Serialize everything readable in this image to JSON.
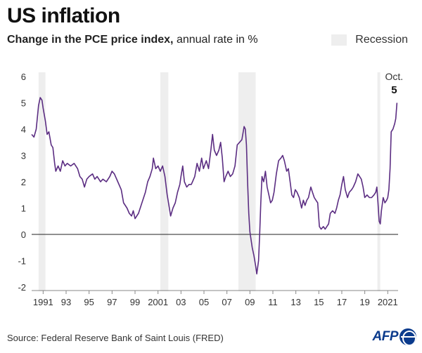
{
  "header": {
    "title": "US inflation",
    "subtitle_bold": "Change in the PCE price index,",
    "subtitle_rest": " annual rate in %"
  },
  "legend": {
    "recession_label": "Recession",
    "recession_color": "#eeeeee"
  },
  "footer": {
    "source": "Source: Federal Reserve Bank of Saint Louis (FRED)",
    "logo": "AFP"
  },
  "colors": {
    "line": "#5b2d82",
    "zero_line": "#222222",
    "axis": "#888888",
    "text": "#333333"
  },
  "chart_data": {
    "type": "line",
    "title": "US inflation",
    "subtitle": "Change in the PCE price index, annual rate in %",
    "xlabel": "",
    "ylabel": "",
    "xlim": [
      1990,
      2021.9
    ],
    "ylim": [
      -2,
      6
    ],
    "grid": false,
    "y_ticks": [
      -2,
      -1,
      0,
      1,
      2,
      3,
      4,
      5,
      6
    ],
    "y_tick_labels": [
      "-2",
      "-1",
      "0",
      "1",
      "2",
      "3",
      "4",
      "5",
      "6"
    ],
    "x_ticks": [
      1991,
      1993,
      1995,
      1997,
      1999,
      2001,
      2003,
      2005,
      2007,
      2009,
      2011,
      2013,
      2015,
      2017,
      2019,
      2021
    ],
    "x_tick_labels": [
      "1991",
      "93",
      "95",
      "97",
      "99",
      "2001",
      "03",
      "05",
      "07",
      "09",
      "11",
      "13",
      "15",
      "17",
      "19",
      "2021"
    ],
    "recessions": [
      [
        1990.6,
        1991.2
      ],
      [
        2001.2,
        2001.9
      ],
      [
        2008.0,
        2009.5
      ],
      [
        2020.1,
        2020.35
      ]
    ],
    "annotation": {
      "label": "Oct.",
      "value": "5"
    },
    "series": [
      {
        "points": [
          [
            1990.0,
            3.8
          ],
          [
            1990.2,
            3.7
          ],
          [
            1990.4,
            4.0
          ],
          [
            1990.6,
            4.9
          ],
          [
            1990.75,
            5.2
          ],
          [
            1990.9,
            5.1
          ],
          [
            1991.0,
            4.8
          ],
          [
            1991.2,
            4.3
          ],
          [
            1991.35,
            3.8
          ],
          [
            1991.5,
            3.9
          ],
          [
            1991.7,
            3.4
          ],
          [
            1991.85,
            3.3
          ],
          [
            1992.0,
            2.7
          ],
          [
            1992.1,
            2.4
          ],
          [
            1992.3,
            2.6
          ],
          [
            1992.5,
            2.4
          ],
          [
            1992.7,
            2.8
          ],
          [
            1992.9,
            2.6
          ],
          [
            1993.1,
            2.7
          ],
          [
            1993.4,
            2.6
          ],
          [
            1993.7,
            2.7
          ],
          [
            1994.0,
            2.5
          ],
          [
            1994.2,
            2.2
          ],
          [
            1994.4,
            2.1
          ],
          [
            1994.6,
            1.8
          ],
          [
            1994.8,
            2.1
          ],
          [
            1995.0,
            2.2
          ],
          [
            1995.3,
            2.3
          ],
          [
            1995.5,
            2.1
          ],
          [
            1995.7,
            2.2
          ],
          [
            1996.0,
            2.0
          ],
          [
            1996.2,
            2.1
          ],
          [
            1996.5,
            2.0
          ],
          [
            1996.8,
            2.2
          ],
          [
            1997.0,
            2.4
          ],
          [
            1997.2,
            2.3
          ],
          [
            1997.5,
            2.0
          ],
          [
            1997.8,
            1.7
          ],
          [
            1998.0,
            1.2
          ],
          [
            1998.3,
            1.0
          ],
          [
            1998.5,
            0.8
          ],
          [
            1998.7,
            0.7
          ],
          [
            1998.85,
            0.9
          ],
          [
            1999.0,
            0.6
          ],
          [
            1999.3,
            0.8
          ],
          [
            1999.6,
            1.2
          ],
          [
            1999.9,
            1.6
          ],
          [
            2000.1,
            2.0
          ],
          [
            2000.3,
            2.2
          ],
          [
            2000.5,
            2.5
          ],
          [
            2000.6,
            2.9
          ],
          [
            2000.8,
            2.5
          ],
          [
            2001.0,
            2.6
          ],
          [
            2001.2,
            2.4
          ],
          [
            2001.4,
            2.6
          ],
          [
            2001.6,
            2.2
          ],
          [
            2001.8,
            1.5
          ],
          [
            2001.95,
            1.1
          ],
          [
            2002.1,
            0.7
          ],
          [
            2002.3,
            1.0
          ],
          [
            2002.5,
            1.2
          ],
          [
            2002.7,
            1.6
          ],
          [
            2002.9,
            1.9
          ],
          [
            2003.0,
            2.2
          ],
          [
            2003.15,
            2.6
          ],
          [
            2003.3,
            2.0
          ],
          [
            2003.5,
            1.8
          ],
          [
            2003.7,
            1.9
          ],
          [
            2003.9,
            1.9
          ],
          [
            2004.0,
            2.0
          ],
          [
            2004.2,
            2.2
          ],
          [
            2004.4,
            2.7
          ],
          [
            2004.6,
            2.4
          ],
          [
            2004.8,
            2.9
          ],
          [
            2004.95,
            2.5
          ],
          [
            2005.2,
            2.8
          ],
          [
            2005.4,
            2.5
          ],
          [
            2005.6,
            3.2
          ],
          [
            2005.75,
            3.8
          ],
          [
            2005.9,
            3.2
          ],
          [
            2006.1,
            3.0
          ],
          [
            2006.3,
            3.2
          ],
          [
            2006.45,
            3.5
          ],
          [
            2006.6,
            2.9
          ],
          [
            2006.75,
            2.0
          ],
          [
            2006.9,
            2.2
          ],
          [
            2007.1,
            2.4
          ],
          [
            2007.3,
            2.2
          ],
          [
            2007.5,
            2.3
          ],
          [
            2007.7,
            2.6
          ],
          [
            2007.9,
            3.4
          ],
          [
            2008.1,
            3.5
          ],
          [
            2008.3,
            3.6
          ],
          [
            2008.5,
            4.1
          ],
          [
            2008.6,
            4.0
          ],
          [
            2008.7,
            3.4
          ],
          [
            2008.8,
            2.0
          ],
          [
            2008.9,
            0.8
          ],
          [
            2009.0,
            0.1
          ],
          [
            2009.2,
            -0.5
          ],
          [
            2009.35,
            -0.8
          ],
          [
            2009.5,
            -1.2
          ],
          [
            2009.6,
            -1.5
          ],
          [
            2009.75,
            -1.0
          ],
          [
            2009.85,
            0.0
          ],
          [
            2009.95,
            1.2
          ],
          [
            2010.05,
            2.2
          ],
          [
            2010.2,
            2.0
          ],
          [
            2010.35,
            2.4
          ],
          [
            2010.5,
            1.8
          ],
          [
            2010.65,
            1.5
          ],
          [
            2010.8,
            1.2
          ],
          [
            2010.95,
            1.3
          ],
          [
            2011.1,
            1.6
          ],
          [
            2011.3,
            2.3
          ],
          [
            2011.5,
            2.8
          ],
          [
            2011.7,
            2.9
          ],
          [
            2011.85,
            3.0
          ],
          [
            2012.0,
            2.8
          ],
          [
            2012.2,
            2.4
          ],
          [
            2012.35,
            2.5
          ],
          [
            2012.5,
            2.0
          ],
          [
            2012.65,
            1.5
          ],
          [
            2012.8,
            1.4
          ],
          [
            2012.95,
            1.7
          ],
          [
            2013.1,
            1.6
          ],
          [
            2013.3,
            1.4
          ],
          [
            2013.5,
            1.0
          ],
          [
            2013.65,
            1.3
          ],
          [
            2013.8,
            1.1
          ],
          [
            2013.95,
            1.3
          ],
          [
            2014.1,
            1.4
          ],
          [
            2014.3,
            1.8
          ],
          [
            2014.45,
            1.6
          ],
          [
            2014.6,
            1.4
          ],
          [
            2014.75,
            1.3
          ],
          [
            2014.9,
            1.2
          ],
          [
            2015.05,
            0.3
          ],
          [
            2015.2,
            0.2
          ],
          [
            2015.4,
            0.3
          ],
          [
            2015.55,
            0.2
          ],
          [
            2015.7,
            0.3
          ],
          [
            2015.85,
            0.4
          ],
          [
            2016.0,
            0.8
          ],
          [
            2016.2,
            0.9
          ],
          [
            2016.4,
            0.8
          ],
          [
            2016.55,
            1.0
          ],
          [
            2016.7,
            1.3
          ],
          [
            2016.85,
            1.5
          ],
          [
            2017.0,
            1.9
          ],
          [
            2017.15,
            2.2
          ],
          [
            2017.3,
            1.7
          ],
          [
            2017.5,
            1.4
          ],
          [
            2017.65,
            1.6
          ],
          [
            2017.85,
            1.7
          ],
          [
            2018.0,
            1.8
          ],
          [
            2018.2,
            2.0
          ],
          [
            2018.4,
            2.3
          ],
          [
            2018.55,
            2.2
          ],
          [
            2018.7,
            2.1
          ],
          [
            2018.85,
            1.8
          ],
          [
            2019.0,
            1.4
          ],
          [
            2019.2,
            1.5
          ],
          [
            2019.4,
            1.4
          ],
          [
            2019.6,
            1.4
          ],
          [
            2019.8,
            1.5
          ],
          [
            2019.95,
            1.6
          ],
          [
            2020.05,
            1.8
          ],
          [
            2020.15,
            1.2
          ],
          [
            2020.25,
            0.5
          ],
          [
            2020.35,
            0.4
          ],
          [
            2020.45,
            0.9
          ],
          [
            2020.6,
            1.4
          ],
          [
            2020.75,
            1.2
          ],
          [
            2020.9,
            1.3
          ],
          [
            2021.0,
            1.4
          ],
          [
            2021.1,
            1.7
          ],
          [
            2021.2,
            2.5
          ],
          [
            2021.3,
            3.9
          ],
          [
            2021.45,
            4.0
          ],
          [
            2021.6,
            4.2
          ],
          [
            2021.7,
            4.4
          ],
          [
            2021.8,
            5.0
          ]
        ]
      }
    ]
  }
}
